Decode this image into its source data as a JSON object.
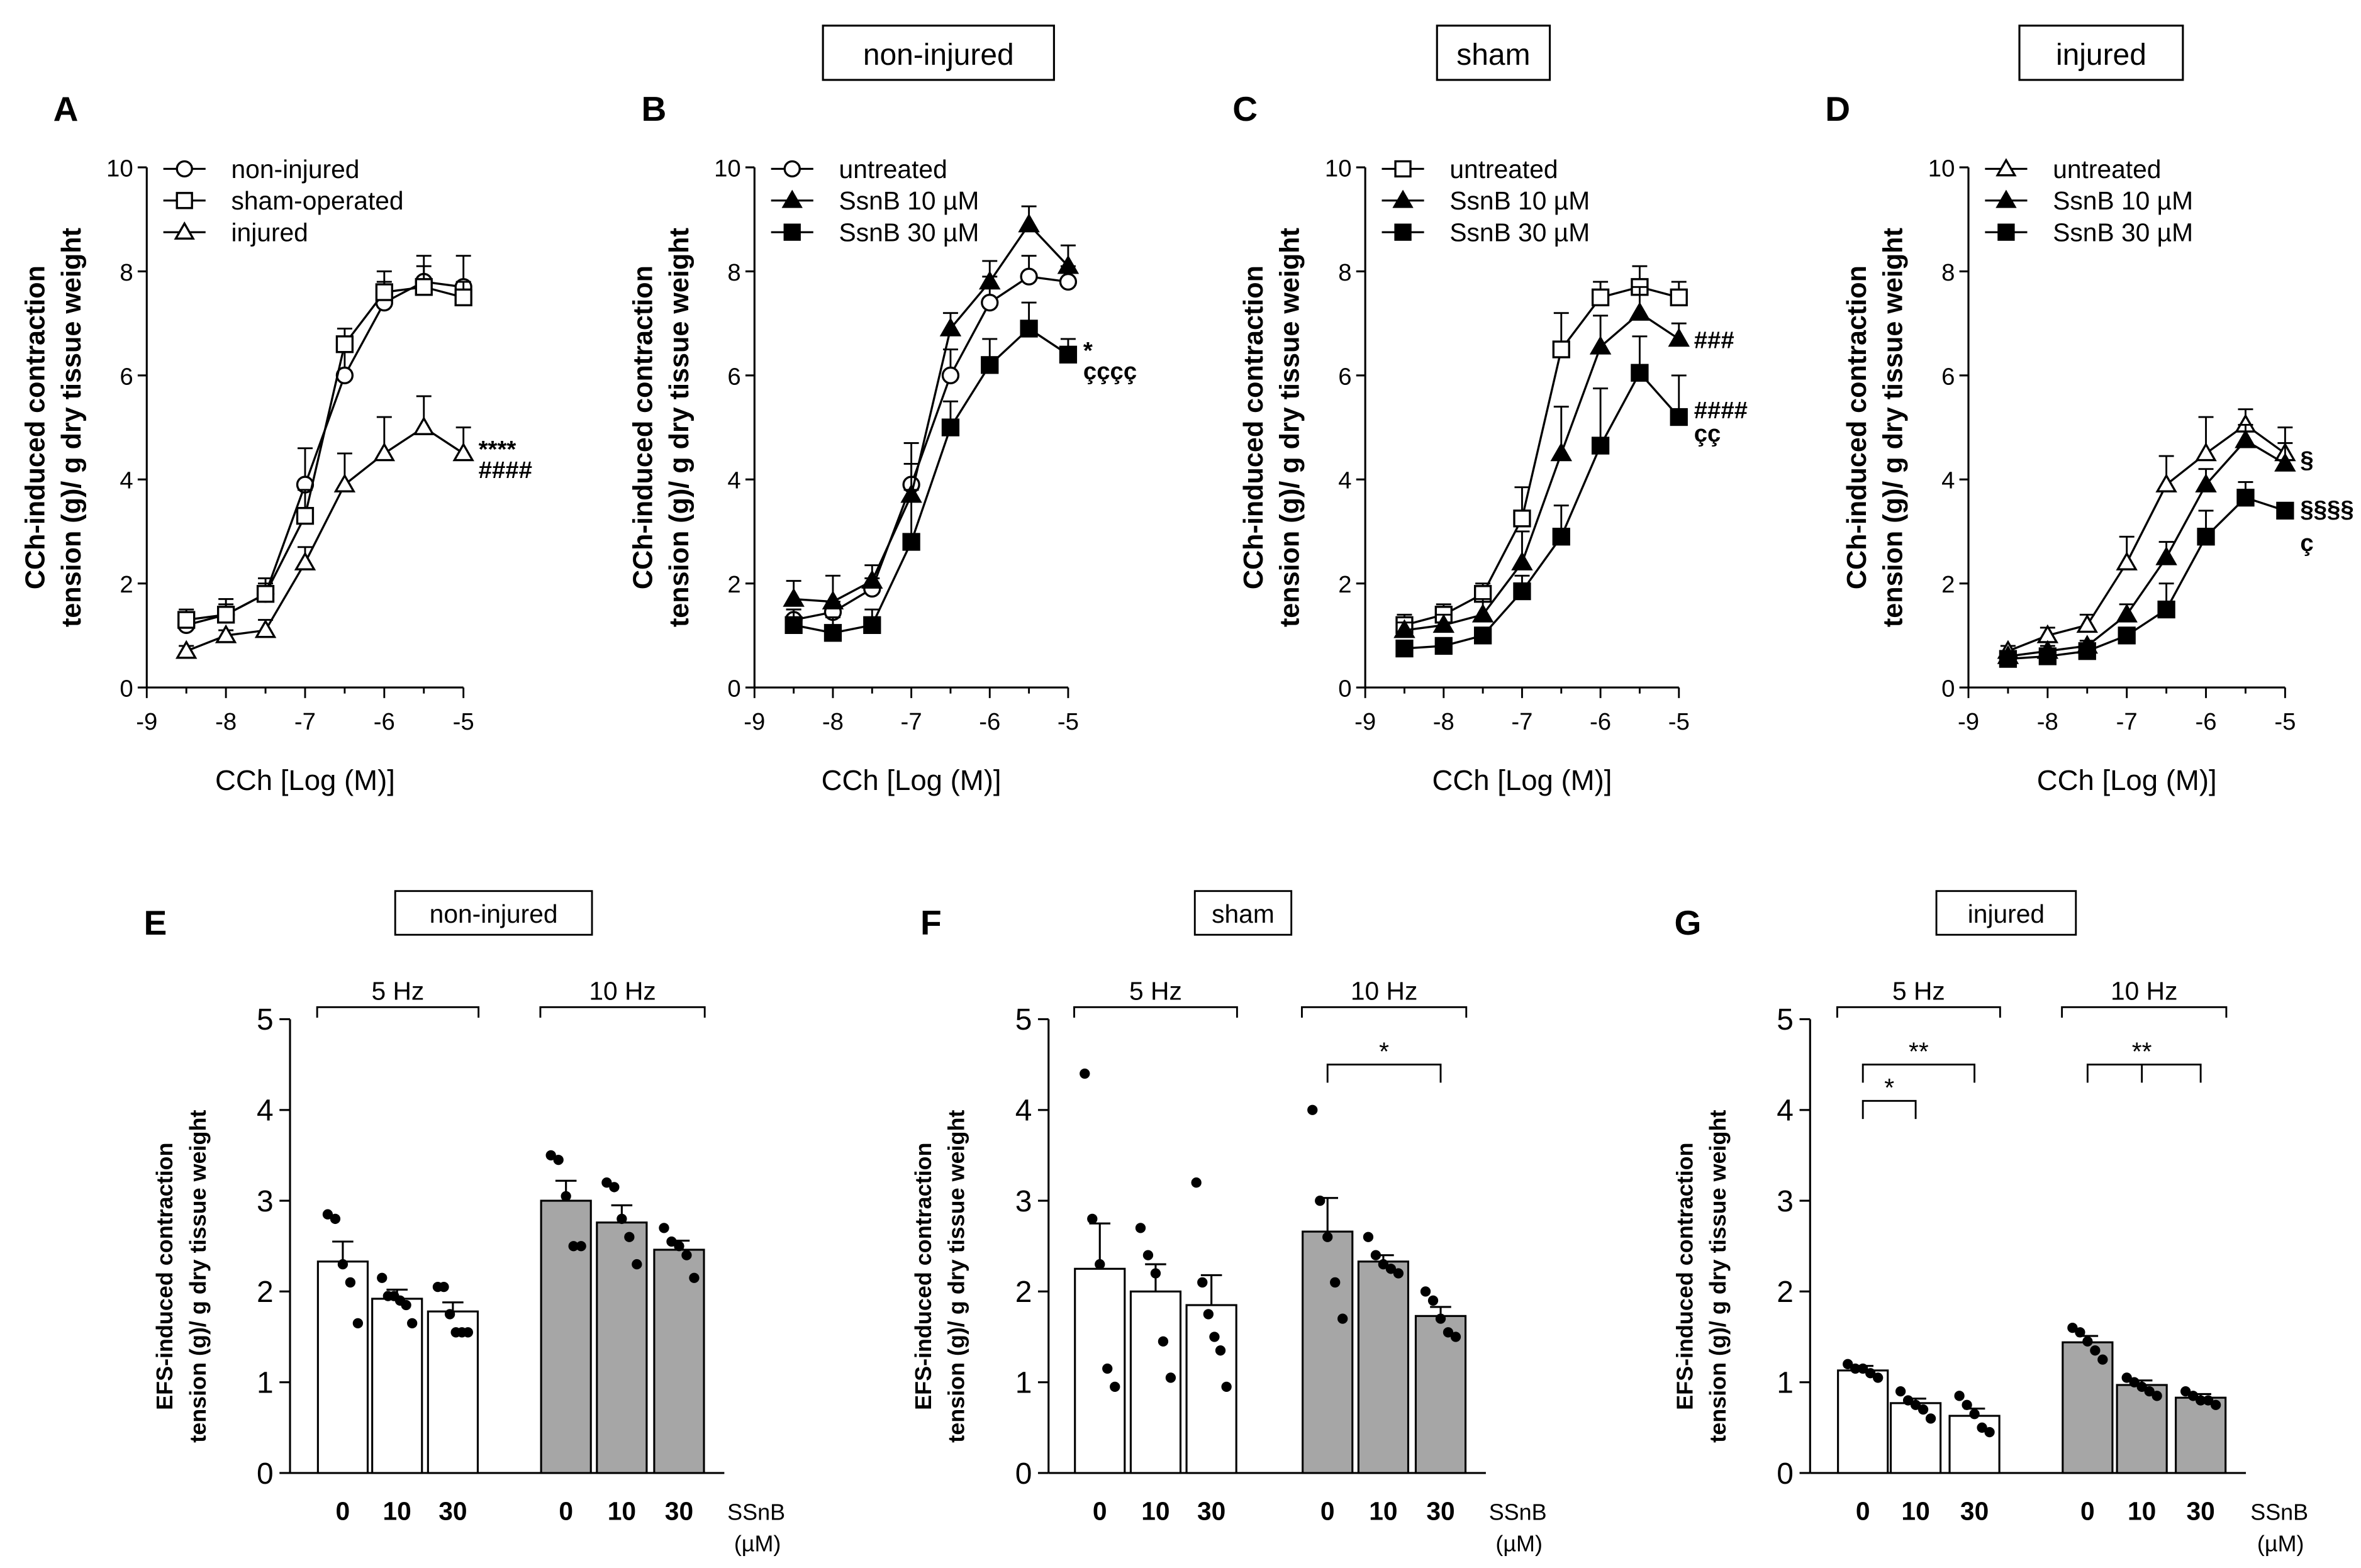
{
  "chart_data": [
    {
      "panel": "A",
      "type": "line",
      "header": "",
      "xlabel": "CCh [Log (M)]",
      "ylabel": [
        "CCh-induced contraction",
        "tension (g)/ g dry tissue weight"
      ],
      "x": [
        -8.5,
        -8,
        -7.5,
        -7,
        -6.5,
        -6,
        -5.5,
        -5
      ],
      "xlim": [
        -9,
        -5
      ],
      "xticks": [
        -9,
        -8,
        -7,
        -6,
        -5
      ],
      "ylim": [
        0,
        10
      ],
      "yticks": [
        0,
        2,
        4,
        6,
        8,
        10
      ],
      "legend_position": "top-left",
      "series": [
        {
          "name": "non-injured",
          "marker": "circle-open",
          "values": [
            1.2,
            1.4,
            1.8,
            3.9,
            6.0,
            7.4,
            7.8,
            7.7
          ],
          "err": [
            0.2,
            0.3,
            0.3,
            0.7,
            0.5,
            0.4,
            0.5,
            0.6
          ]
        },
        {
          "name": "sham-operated",
          "marker": "square-open",
          "values": [
            1.3,
            1.4,
            1.8,
            3.3,
            6.6,
            7.6,
            7.7,
            7.5
          ],
          "err": [
            0.2,
            0.2,
            0.2,
            0.5,
            0.3,
            0.4,
            0.4,
            0.3
          ]
        },
        {
          "name": "injured",
          "marker": "triangle-open",
          "values": [
            0.7,
            1.0,
            1.1,
            2.4,
            3.9,
            4.5,
            5.0,
            4.5
          ],
          "err": [
            0.1,
            0.1,
            0.2,
            0.3,
            0.6,
            0.7,
            0.6,
            0.5
          ]
        }
      ],
      "annotations": [
        {
          "text": "****",
          "x": -5,
          "y": 4.6
        },
        {
          "text": "####",
          "x": -5,
          "y": 4.2
        }
      ]
    },
    {
      "panel": "B",
      "type": "line",
      "header": "non-injured",
      "xlabel": "CCh [Log (M)]",
      "ylabel": [
        "CCh-induced contraction",
        "tension (g)/ g dry tissue weight"
      ],
      "x": [
        -8.5,
        -8,
        -7.5,
        -7,
        -6.5,
        -6,
        -5.5,
        -5
      ],
      "xlim": [
        -9,
        -5
      ],
      "xticks": [
        -9,
        -8,
        -7,
        -6,
        -5
      ],
      "ylim": [
        0,
        10
      ],
      "yticks": [
        0,
        2,
        4,
        6,
        8,
        10
      ],
      "legend_position": "top-left",
      "series": [
        {
          "name": "untreated",
          "marker": "circle-open",
          "values": [
            1.3,
            1.45,
            1.9,
            3.9,
            6.0,
            7.4,
            7.9,
            7.8
          ],
          "err": [
            0.2,
            0.2,
            0.2,
            0.8,
            0.5,
            0.5,
            0.4,
            0.3
          ]
        },
        {
          "name": "SsnB 10 µM",
          "marker": "triangle-filled",
          "values": [
            1.7,
            1.65,
            2.05,
            3.7,
            6.9,
            7.8,
            8.9,
            8.1
          ],
          "err": [
            0.35,
            0.5,
            0.3,
            0.6,
            0.3,
            0.4,
            0.35,
            0.4
          ]
        },
        {
          "name": "SsnB 30 µM",
          "marker": "square-filled",
          "values": [
            1.2,
            1.05,
            1.2,
            2.8,
            5.0,
            6.2,
            6.9,
            6.4
          ],
          "err": [
            0.3,
            0.3,
            0.3,
            1.0,
            0.5,
            0.5,
            0.5,
            0.3
          ]
        }
      ],
      "annotations": [
        {
          "text": "*",
          "x": -5,
          "y": 6.5
        },
        {
          "text": "çççç",
          "x": -5,
          "y": 6.1
        }
      ]
    },
    {
      "panel": "C",
      "type": "line",
      "header": "sham",
      "xlabel": "CCh [Log (M)]",
      "ylabel": [
        "CCh-induced contraction",
        "tension (g)/ g dry tissue weight"
      ],
      "x": [
        -8.5,
        -8,
        -7.5,
        -7,
        -6.5,
        -6,
        -5.5,
        -5
      ],
      "xlim": [
        -9,
        -5
      ],
      "xticks": [
        -9,
        -8,
        -7,
        -6,
        -5
      ],
      "ylim": [
        0,
        10
      ],
      "yticks": [
        0,
        2,
        4,
        6,
        8,
        10
      ],
      "legend_position": "top-left",
      "series": [
        {
          "name": "untreated",
          "marker": "square-open",
          "values": [
            1.2,
            1.4,
            1.8,
            3.25,
            6.5,
            7.5,
            7.7,
            7.5
          ],
          "err": [
            0.2,
            0.2,
            0.2,
            0.6,
            0.7,
            0.3,
            0.4,
            0.3
          ]
        },
        {
          "name": "SsnB 10 µM",
          "marker": "triangle-filled",
          "values": [
            1.1,
            1.2,
            1.4,
            2.4,
            4.5,
            6.55,
            7.2,
            6.7
          ],
          "err": [
            0.15,
            0.2,
            0.3,
            0.6,
            0.9,
            0.6,
            0.5,
            0.3
          ]
        },
        {
          "name": "SsnB 30 µM",
          "marker": "square-filled",
          "values": [
            0.75,
            0.8,
            1.0,
            1.85,
            2.9,
            4.65,
            6.05,
            5.2
          ],
          "err": [
            0.1,
            0.1,
            0.15,
            0.3,
            0.6,
            1.1,
            0.7,
            0.8
          ]
        }
      ],
      "annotations": [
        {
          "text": "###",
          "x": -5,
          "y": 6.7
        },
        {
          "text": "####",
          "x": -5,
          "y": 5.35
        },
        {
          "text": "çç",
          "x": -5,
          "y": 4.9
        }
      ]
    },
    {
      "panel": "D",
      "type": "line",
      "header": "injured",
      "xlabel": "CCh [Log (M)]",
      "ylabel": [
        "CCh-induced contraction",
        "tension (g)/ g dry tissue weight"
      ],
      "x": [
        -8.5,
        -8,
        -7.5,
        -7,
        -6.5,
        -6,
        -5.5,
        -5
      ],
      "xlim": [
        -9,
        -5
      ],
      "xticks": [
        -9,
        -8,
        -7,
        -6,
        -5
      ],
      "ylim": [
        0,
        10
      ],
      "yticks": [
        0,
        2,
        4,
        6,
        8,
        10
      ],
      "legend_position": "top-left",
      "series": [
        {
          "name": "untreated",
          "marker": "triangle-open",
          "values": [
            0.7,
            1.0,
            1.2,
            2.4,
            3.9,
            4.5,
            5.05,
            4.5
          ],
          "err": [
            0.1,
            0.15,
            0.2,
            0.5,
            0.55,
            0.7,
            0.3,
            0.5
          ]
        },
        {
          "name": "SsnB 10 µM",
          "marker": "triangle-filled",
          "values": [
            0.6,
            0.7,
            0.8,
            1.4,
            2.5,
            3.9,
            4.75,
            4.3
          ],
          "err": [
            0.1,
            0.1,
            0.1,
            0.2,
            0.3,
            0.3,
            0.3,
            0.4
          ]
        },
        {
          "name": "SsnB 30 µM",
          "marker": "square-filled",
          "values": [
            0.55,
            0.6,
            0.7,
            1.0,
            1.5,
            2.9,
            3.65,
            3.4
          ],
          "err": [
            0.1,
            0.1,
            0.1,
            0.15,
            0.5,
            0.5,
            0.3,
            0.1
          ]
        }
      ],
      "annotations": [
        {
          "text": "§",
          "x": -5,
          "y": 4.4
        },
        {
          "text": "§§§§",
          "x": -5,
          "y": 3.45
        },
        {
          "text": "ç",
          "x": -5,
          "y": 2.8
        }
      ]
    },
    {
      "panel": "E",
      "type": "bar",
      "header": "non-injured",
      "ylabel": [
        "EFS-induced contraction",
        "tension (g)/ g dry tissue weight"
      ],
      "ylim": [
        0,
        5
      ],
      "yticks": [
        0,
        1,
        2,
        3,
        4,
        5
      ],
      "groups": [
        "5 Hz",
        "10 Hz"
      ],
      "categories": [
        "0",
        "10",
        "30"
      ],
      "treatment_label": [
        "SSnB",
        "(µM)"
      ],
      "bars": [
        {
          "group": "5 Hz",
          "category": "0",
          "value": 2.33,
          "sem": 0.22,
          "color": "#ffffff",
          "points": [
            2.85,
            2.8,
            2.3,
            2.1,
            1.65
          ]
        },
        {
          "group": "5 Hz",
          "category": "10",
          "value": 1.92,
          "sem": 0.1,
          "color": "#ffffff",
          "points": [
            2.15,
            1.95,
            1.95,
            1.9,
            1.85,
            1.65
          ]
        },
        {
          "group": "5 Hz",
          "category": "30",
          "value": 1.78,
          "sem": 0.1,
          "color": "#ffffff",
          "points": [
            2.05,
            2.05,
            1.75,
            1.55,
            1.55,
            1.55
          ]
        },
        {
          "group": "10 Hz",
          "category": "0",
          "value": 3.0,
          "sem": 0.22,
          "color": "#a6a6a6",
          "points": [
            3.5,
            3.45,
            3.05,
            2.5,
            2.5
          ]
        },
        {
          "group": "10 Hz",
          "category": "10",
          "value": 2.76,
          "sem": 0.19,
          "color": "#a6a6a6",
          "points": [
            3.2,
            3.15,
            2.8,
            2.6,
            2.3
          ]
        },
        {
          "group": "10 Hz",
          "category": "30",
          "value": 2.46,
          "sem": 0.1,
          "color": "#a6a6a6",
          "points": [
            2.7,
            2.55,
            2.5,
            2.4,
            2.15
          ]
        }
      ],
      "significance": []
    },
    {
      "panel": "F",
      "type": "bar",
      "header": "sham",
      "ylabel": [
        "EFS-induced contraction",
        "tension (g)/ g dry tissue weight"
      ],
      "ylim": [
        0,
        5
      ],
      "yticks": [
        0,
        1,
        2,
        3,
        4,
        5
      ],
      "groups": [
        "5 Hz",
        "10 Hz"
      ],
      "categories": [
        "0",
        "10",
        "30"
      ],
      "treatment_label": [
        "SSnB",
        "(µM)"
      ],
      "bars": [
        {
          "group": "5 Hz",
          "category": "0",
          "value": 2.25,
          "sem": 0.5,
          "color": "#ffffff",
          "points": [
            4.4,
            2.8,
            2.3,
            1.15,
            0.95
          ]
        },
        {
          "group": "5 Hz",
          "category": "10",
          "value": 2.0,
          "sem": 0.3,
          "color": "#ffffff",
          "points": [
            2.7,
            2.4,
            2.2,
            1.45,
            1.05
          ]
        },
        {
          "group": "5 Hz",
          "category": "30",
          "value": 1.85,
          "sem": 0.33,
          "color": "#ffffff",
          "points": [
            3.2,
            2.1,
            1.75,
            1.5,
            1.35,
            0.95
          ]
        },
        {
          "group": "10 Hz",
          "category": "0",
          "value": 2.66,
          "sem": 0.37,
          "color": "#a6a6a6",
          "points": [
            4.0,
            3.0,
            2.6,
            2.1,
            1.7
          ]
        },
        {
          "group": "10 Hz",
          "category": "10",
          "value": 2.33,
          "sem": 0.07,
          "color": "#a6a6a6",
          "points": [
            2.6,
            2.4,
            2.3,
            2.25,
            2.2
          ]
        },
        {
          "group": "10 Hz",
          "category": "30",
          "value": 1.73,
          "sem": 0.1,
          "color": "#a6a6a6",
          "points": [
            2.0,
            1.9,
            1.7,
            1.55,
            1.5
          ]
        }
      ],
      "significance": [
        {
          "group": "10 Hz",
          "from": "0",
          "to": "30",
          "label": "*",
          "y": 4.5
        }
      ]
    },
    {
      "panel": "G",
      "type": "bar",
      "header": "injured",
      "ylabel": [
        "EFS-induced contraction",
        "tension (g)/ g dry tissue weight"
      ],
      "ylim": [
        0,
        5
      ],
      "yticks": [
        0,
        1,
        2,
        3,
        4,
        5
      ],
      "groups": [
        "5 Hz",
        "10 Hz"
      ],
      "categories": [
        "0",
        "10",
        "30"
      ],
      "treatment_label": [
        "SSnB",
        "(µM)"
      ],
      "bars": [
        {
          "group": "5 Hz",
          "category": "0",
          "value": 1.13,
          "sem": 0.05,
          "color": "#ffffff",
          "points": [
            1.2,
            1.15,
            1.15,
            1.1,
            1.05
          ]
        },
        {
          "group": "5 Hz",
          "category": "10",
          "value": 0.77,
          "sem": 0.05,
          "color": "#ffffff",
          "points": [
            0.9,
            0.8,
            0.75,
            0.7,
            0.6
          ]
        },
        {
          "group": "5 Hz",
          "category": "30",
          "value": 0.63,
          "sem": 0.08,
          "color": "#ffffff",
          "points": [
            0.85,
            0.75,
            0.65,
            0.5,
            0.45
          ]
        },
        {
          "group": "10 Hz",
          "category": "0",
          "value": 1.44,
          "sem": 0.07,
          "color": "#a6a6a6",
          "points": [
            1.6,
            1.55,
            1.45,
            1.35,
            1.25
          ]
        },
        {
          "group": "10 Hz",
          "category": "10",
          "value": 0.97,
          "sem": 0.05,
          "color": "#a6a6a6",
          "points": [
            1.05,
            1.0,
            0.95,
            0.9,
            0.85
          ]
        },
        {
          "group": "10 Hz",
          "category": "30",
          "value": 0.83,
          "sem": 0.04,
          "color": "#a6a6a6",
          "points": [
            0.9,
            0.85,
            0.8,
            0.8,
            0.75
          ]
        }
      ],
      "significance": [
        {
          "group": "5 Hz",
          "from": "0",
          "to": "10",
          "label": "*",
          "y": 4.1
        },
        {
          "group": "5 Hz",
          "from": "0",
          "to": "30",
          "label": "**",
          "y": 4.5
        },
        {
          "group": "10 Hz",
          "from": "0",
          "to": "10",
          "to2": "30",
          "label": "**",
          "y": 4.5
        }
      ]
    }
  ]
}
